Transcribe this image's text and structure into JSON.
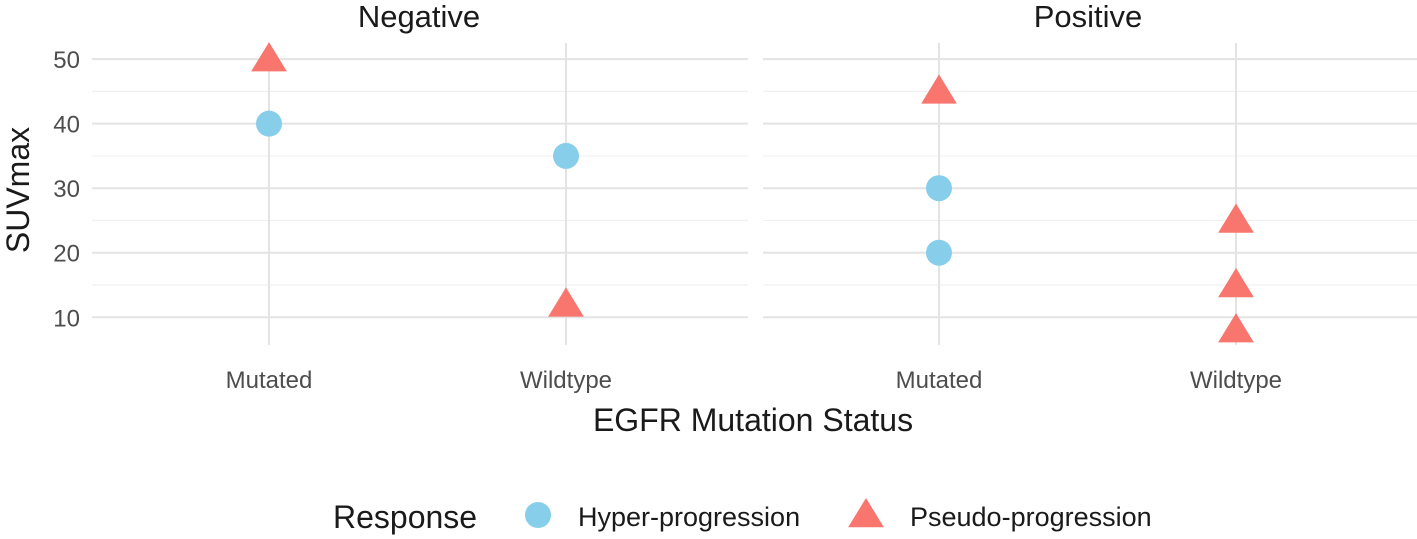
{
  "chart_data": {
    "type": "scatter",
    "facets": [
      {
        "name": "Negative",
        "categories": [
          "Mutated",
          "Wildtype"
        ]
      },
      {
        "name": "Positive",
        "categories": [
          "Mutated",
          "Wildtype"
        ]
      }
    ],
    "xlabel": "EGFR Mutation Status",
    "ylabel": "SUVmax",
    "y_ticks": [
      10,
      20,
      30,
      40,
      50
    ],
    "ylim": [
      5.7,
      52.5
    ],
    "grid": true,
    "legend": {
      "title": "Response",
      "placement": "bottom",
      "entries": [
        {
          "name": "Hyper-progression",
          "shape": "circle",
          "color": "#87CEEB"
        },
        {
          "name": "Pseudo-progression",
          "shape": "triangle",
          "color": "#F8766D"
        }
      ]
    },
    "points": [
      {
        "facet": "Negative",
        "x": "Mutated",
        "y": 40,
        "response": "Hyper-progression"
      },
      {
        "facet": "Negative",
        "x": "Mutated",
        "y": 50,
        "response": "Pseudo-progression"
      },
      {
        "facet": "Negative",
        "x": "Wildtype",
        "y": 35,
        "response": "Hyper-progression"
      },
      {
        "facet": "Negative",
        "x": "Wildtype",
        "y": 12,
        "response": "Pseudo-progression"
      },
      {
        "facet": "Positive",
        "x": "Mutated",
        "y": 45,
        "response": "Pseudo-progression"
      },
      {
        "facet": "Positive",
        "x": "Mutated",
        "y": 30,
        "response": "Hyper-progression"
      },
      {
        "facet": "Positive",
        "x": "Mutated",
        "y": 20,
        "response": "Hyper-progression"
      },
      {
        "facet": "Positive",
        "x": "Wildtype",
        "y": 25,
        "response": "Pseudo-progression"
      },
      {
        "facet": "Positive",
        "x": "Wildtype",
        "y": 15,
        "response": "Pseudo-progression"
      },
      {
        "facet": "Positive",
        "x": "Wildtype",
        "y": 8,
        "response": "Pseudo-progression"
      }
    ]
  }
}
